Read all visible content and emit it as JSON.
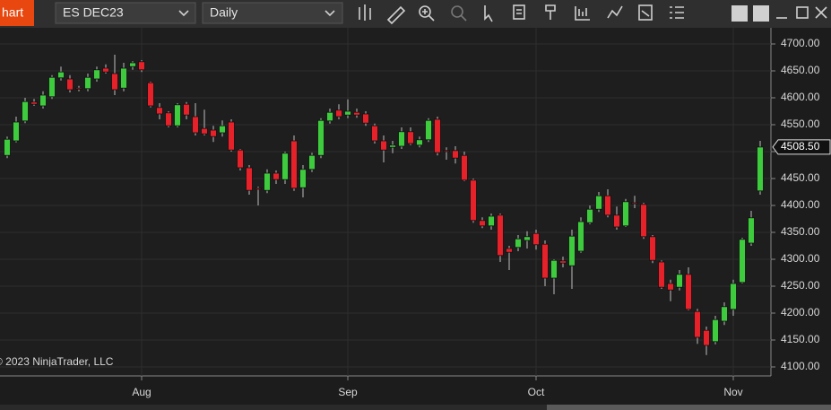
{
  "ui": {
    "tab": "hart",
    "instrument": "ES DEC23",
    "interval": "Daily"
  },
  "chart_data": {
    "type": "candlestick",
    "annotation": "© 2023 NinjaTrader, LLC",
    "categories": [
      null,
      null,
      null,
      null,
      null,
      null,
      null,
      null,
      null,
      null,
      null,
      null,
      null,
      null,
      null,
      "Aug",
      null,
      null,
      null,
      null,
      null,
      null,
      null,
      null,
      null,
      null,
      null,
      null,
      null,
      null,
      null,
      null,
      null,
      null,
      null,
      null,
      null,
      null,
      "Sep",
      null,
      null,
      null,
      null,
      null,
      null,
      null,
      null,
      null,
      null,
      null,
      null,
      null,
      null,
      null,
      null,
      null,
      null,
      null,
      null,
      "Oct",
      null,
      null,
      null,
      null,
      null,
      null,
      null,
      null,
      null,
      null,
      null,
      null,
      null,
      null,
      null,
      null,
      null,
      null,
      null,
      null,
      null,
      "Nov",
      null,
      null,
      null
    ],
    "up_color": "#3ecb3e",
    "down_color": "#e5212a",
    "open": [
      4493,
      4520,
      4557,
      4592,
      4585,
      4602,
      4637,
      4635,
      4618,
      4617,
      4635,
      4655,
      4645,
      4618,
      4658,
      4667,
      4628,
      4582,
      4572,
      4548,
      4588,
      4565,
      4543,
      4540,
      4535,
      4555,
      4503,
      4470,
      4432,
      4428,
      4460,
      4448,
      4520,
      4433,
      4467,
      4493,
      4557,
      4577,
      4568,
      4573,
      4570,
      4548,
      4520,
      4508,
      4510,
      4537,
      4512,
      4522,
      4560,
      4502,
      4502,
      4493,
      4447,
      4372,
      4362,
      4382,
      4320,
      4322,
      4335,
      4348,
      4328,
      4265,
      4297,
      4288,
      4315,
      4368,
      4393,
      4418,
      4382,
      4362,
      4405,
      4402,
      4342,
      4295,
      4255,
      4248,
      4272,
      4203,
      4168,
      4147,
      4185,
      4207,
      4257,
      4330,
      4427
    ],
    "high": [
      4528,
      4565,
      4600,
      4598,
      4612,
      4642,
      4658,
      4642,
      4622,
      4645,
      4658,
      4662,
      4680,
      4665,
      4668,
      4670,
      4630,
      4590,
      4575,
      4590,
      4592,
      4590,
      4578,
      4548,
      4558,
      4560,
      4505,
      4475,
      4435,
      4467,
      4465,
      4500,
      4530,
      4475,
      4498,
      4562,
      4580,
      4588,
      4597,
      4580,
      4575,
      4552,
      4530,
      4520,
      4545,
      4545,
      4528,
      4562,
      4565,
      4508,
      4510,
      4500,
      4450,
      4378,
      4385,
      4385,
      4325,
      4345,
      4352,
      4355,
      4335,
      4300,
      4305,
      4355,
      4378,
      4400,
      4425,
      4430,
      4398,
      4412,
      4418,
      4405,
      4345,
      4298,
      4262,
      4280,
      4285,
      4208,
      4175,
      4195,
      4220,
      4262,
      4340,
      4390,
      4520
    ],
    "low": [
      4488,
      4517,
      4553,
      4585,
      4580,
      4598,
      4632,
      4610,
      4612,
      4612,
      4630,
      4645,
      4605,
      4612,
      4652,
      4648,
      4582,
      4560,
      4545,
      4545,
      4560,
      4530,
      4530,
      4518,
      4528,
      4500,
      4465,
      4420,
      4400,
      4423,
      4440,
      4440,
      4427,
      4415,
      4462,
      4488,
      4552,
      4560,
      4562,
      4563,
      4548,
      4515,
      4480,
      4497,
      4505,
      4512,
      4508,
      4518,
      4493,
      4485,
      4478,
      4445,
      4368,
      4358,
      4355,
      4295,
      4280,
      4315,
      4320,
      4318,
      4250,
      4235,
      4285,
      4245,
      4312,
      4365,
      4388,
      4378,
      4355,
      4360,
      4395,
      4338,
      4293,
      4245,
      4222,
      4242,
      4205,
      4143,
      4122,
      4142,
      4178,
      4195,
      4255,
      4325,
      4420
    ],
    "close": [
      4523,
      4555,
      4593,
      4588,
      4605,
      4638,
      4648,
      4615,
      4616,
      4638,
      4652,
      4648,
      4615,
      4655,
      4665,
      4652,
      4585,
      4570,
      4548,
      4587,
      4568,
      4535,
      4533,
      4528,
      4548,
      4503,
      4470,
      4428,
      4430,
      4460,
      4448,
      4497,
      4432,
      4467,
      4493,
      4558,
      4573,
      4565,
      4575,
      4568,
      4553,
      4520,
      4503,
      4512,
      4537,
      4515,
      4522,
      4558,
      4498,
      4500,
      4488,
      4447,
      4372,
      4362,
      4380,
      4307,
      4313,
      4338,
      4342,
      4327,
      4265,
      4298,
      4293,
      4343,
      4370,
      4393,
      4418,
      4382,
      4360,
      4407,
      4403,
      4342,
      4298,
      4248,
      4243,
      4272,
      4207,
      4155,
      4140,
      4188,
      4212,
      4255,
      4337,
      4377,
      4508.5
    ],
    "last_price": {
      "value": 4508.5,
      "label": "4508.50"
    },
    "ylim": [
      4085,
      4720
    ],
    "yticks": [
      {
        "value": 4100,
        "label": "4100.00"
      },
      {
        "value": 4150,
        "label": "4150.00"
      },
      {
        "value": 4200,
        "label": "4200.00"
      },
      {
        "value": 4250,
        "label": "4250.00"
      },
      {
        "value": 4300,
        "label": "4300.00"
      },
      {
        "value": 4350,
        "label": "4350.00"
      },
      {
        "value": 4400,
        "label": "4400.00"
      },
      {
        "value": 4450,
        "label": "4450.00"
      },
      {
        "value": 4500,
        "label": "4500.00"
      },
      {
        "value": 4550,
        "label": "4550.00"
      },
      {
        "value": 4600,
        "label": "4600.00"
      },
      {
        "value": 4650,
        "label": "4650.00"
      },
      {
        "value": 4700,
        "label": "4700.00"
      }
    ],
    "grid": true
  }
}
